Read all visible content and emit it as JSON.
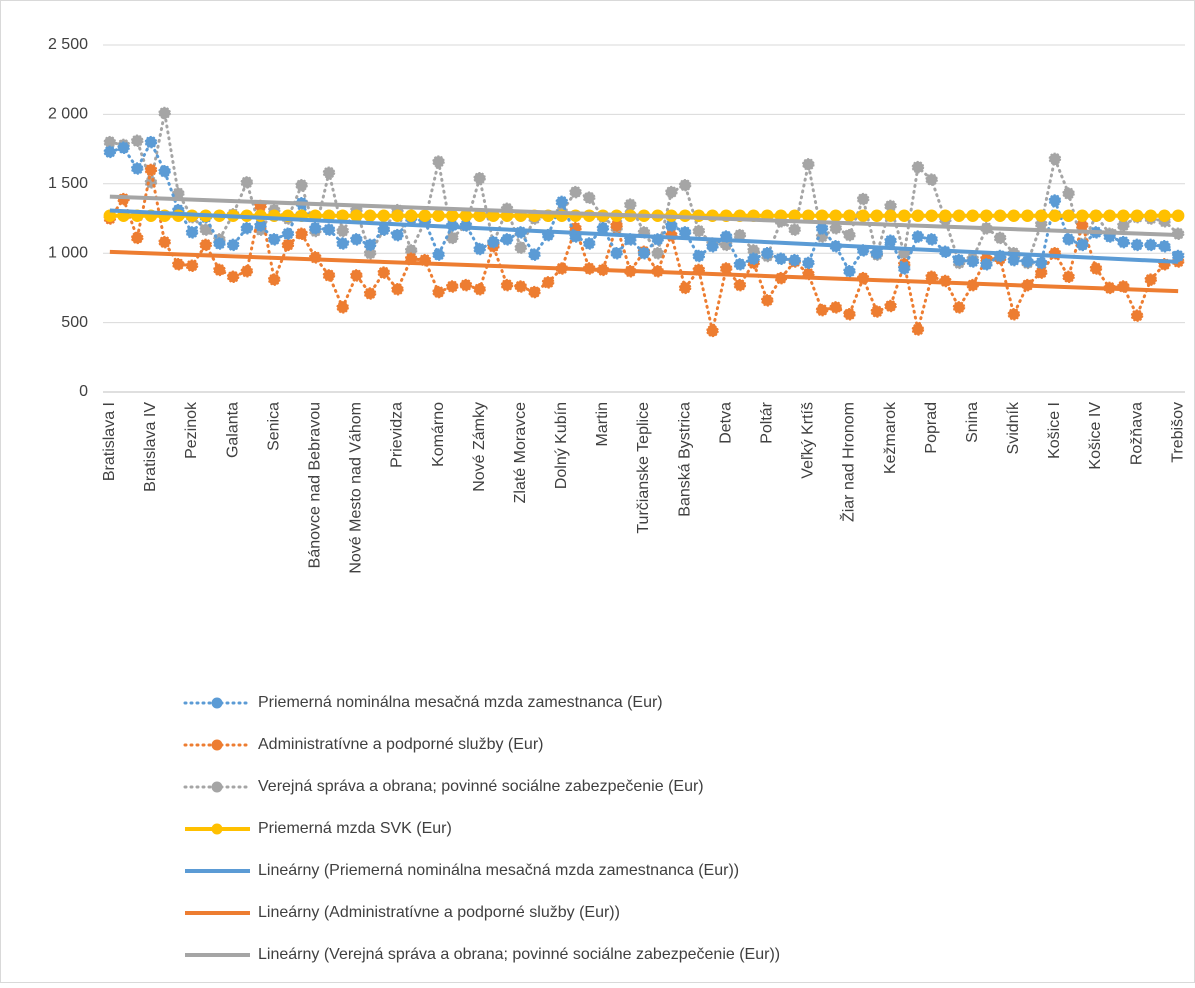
{
  "chart_data": {
    "type": "line",
    "categories": [
      "Bratislava I",
      null,
      null,
      "Bratislava IV",
      null,
      null,
      "Pezinok",
      null,
      null,
      "Galanta",
      null,
      null,
      "Senica",
      null,
      null,
      "Bánovce nad Bebravou",
      null,
      null,
      "Nové Mesto nad Váhom",
      null,
      null,
      "Prievidza",
      null,
      null,
      "Komárno",
      null,
      null,
      "Nové Zámky",
      null,
      null,
      "Zlaté Moravce",
      null,
      null,
      "Dolný Kubín",
      null,
      null,
      "Martin",
      null,
      null,
      "Turčianske Teplice",
      null,
      null,
      "Banská Bystrica",
      null,
      null,
      "Detva",
      null,
      null,
      "Poltár",
      null,
      null,
      "Veľký Krtíš",
      null,
      null,
      "Žiar nad Hronom",
      null,
      null,
      "Kežmarok",
      null,
      null,
      "Poprad",
      null,
      null,
      "Snina",
      null,
      null,
      "Svidník",
      null,
      null,
      "Košice I",
      null,
      null,
      "Košice IV",
      null,
      null,
      "Rožňava",
      null,
      null,
      "Trebišov"
    ],
    "ylim": [
      0,
      2500
    ],
    "yticks": [
      0,
      500,
      {
        "value": 1000,
        "label": "1 000"
      },
      {
        "value": 1500,
        "label": "1 500"
      },
      {
        "value": 2000,
        "label": "2 000"
      },
      {
        "value": 2500,
        "label": "2 500"
      }
    ],
    "grid": true,
    "legend": "bottom",
    "series": [
      {
        "name": "Priemerná nominálna mesačná mzda zamestnanca (Eur)",
        "color": "#5b9bd5",
        "line_style": "dotted",
        "trendline": {
          "name": "Lineárny (Priemerná nominálna mesačná mzda zamestnanca (Eur))",
          "color": "#5b9bd5"
        },
        "values": [
          1730,
          1760,
          1610,
          1800,
          1590,
          1310,
          1150,
          1260,
          1070,
          1060,
          1180,
          1200,
          1100,
          1140,
          1360,
          1180,
          1170,
          1070,
          1100,
          1060,
          1170,
          1130,
          1250,
          1230,
          990,
          1200,
          1200,
          1030,
          1080,
          1100,
          1150,
          990,
          1130,
          1370,
          1120,
          1070,
          1180,
          1000,
          1100,
          1000,
          1100,
          1200,
          1150,
          980,
          1050,
          1120,
          920,
          960,
          1000,
          960,
          950,
          930,
          1180,
          1050,
          870,
          1020,
          1000,
          1090,
          890,
          1120,
          1100,
          1010,
          950,
          940,
          920,
          980,
          950,
          940,
          930,
          1380,
          1100,
          1060,
          1150,
          1120,
          1080,
          1060,
          1060,
          1050,
          980
        ]
      },
      {
        "name": "Administratívne a podporné služby (Eur)",
        "color": "#ed7d31",
        "line_style": "dotted",
        "trendline": {
          "name": "Lineárny (Administratívne a podporné služby (Eur))",
          "color": "#ed7d31"
        },
        "values": [
          1250,
          1390,
          1110,
          1600,
          1080,
          920,
          910,
          1060,
          880,
          830,
          870,
          1340,
          810,
          1060,
          1140,
          970,
          840,
          610,
          840,
          710,
          860,
          740,
          960,
          950,
          720,
          760,
          770,
          740,
          1050,
          770,
          760,
          720,
          790,
          890,
          1180,
          890,
          880,
          1200,
          870,
          1010,
          870,
          1130,
          750,
          880,
          440,
          890,
          770,
          930,
          660,
          820,
          940,
          850,
          590,
          610,
          560,
          820,
          580,
          620,
          920,
          450,
          830,
          800,
          610,
          770,
          960,
          960,
          560,
          770,
          860,
          1000,
          830,
          1200,
          890,
          750,
          760,
          550,
          810,
          920,
          940
        ]
      },
      {
        "name": "Verejná správa a obrana; povinné sociálne zabezpečenie (Eur)",
        "color": "#a5a5a5",
        "line_style": "dotted",
        "trendline": {
          "name": "Lineárny (Verejná správa a obrana; povinné sociálne zabezpečenie (Eur))",
          "color": "#a5a5a5"
        },
        "values": [
          1800,
          1780,
          1810,
          1510,
          2010,
          1430,
          1260,
          1170,
          1100,
          1280,
          1510,
          1170,
          1310,
          1250,
          1490,
          1160,
          1580,
          1160,
          1310,
          1000,
          1170,
          1310,
          1020,
          1230,
          1660,
          1110,
          1200,
          1540,
          1070,
          1320,
          1040,
          1250,
          1270,
          1300,
          1440,
          1400,
          1260,
          1180,
          1350,
          1150,
          1000,
          1440,
          1490,
          1160,
          1070,
          1060,
          1130,
          1020,
          980,
          1230,
          1170,
          1640,
          1120,
          1180,
          1130,
          1390,
          990,
          1340,
          1000,
          1620,
          1530,
          1240,
          930,
          960,
          1180,
          1110,
          1000,
          930,
          1210,
          1680,
          1430,
          1060,
          1270,
          1140,
          1200,
          1260,
          1250,
          1230,
          1140
        ]
      },
      {
        "name": "Priemerná mzda SVK (Eur)",
        "color": "#ffc000",
        "line_style": "solid",
        "values": [
          1270,
          1270,
          1270,
          1270,
          1270,
          1270,
          1270,
          1270,
          1270,
          1270,
          1270,
          1270,
          1270,
          1270,
          1270,
          1270,
          1270,
          1270,
          1270,
          1270,
          1270,
          1270,
          1270,
          1270,
          1270,
          1270,
          1270,
          1270,
          1270,
          1270,
          1270,
          1270,
          1270,
          1270,
          1270,
          1270,
          1270,
          1270,
          1270,
          1270,
          1270,
          1270,
          1270,
          1270,
          1270,
          1270,
          1270,
          1270,
          1270,
          1270,
          1270,
          1270,
          1270,
          1270,
          1270,
          1270,
          1270,
          1270,
          1270,
          1270,
          1270,
          1270,
          1270,
          1270,
          1270,
          1270,
          1270,
          1270,
          1270,
          1270,
          1270,
          1270,
          1270,
          1270,
          1270,
          1270,
          1270,
          1270,
          1270
        ]
      }
    ]
  }
}
